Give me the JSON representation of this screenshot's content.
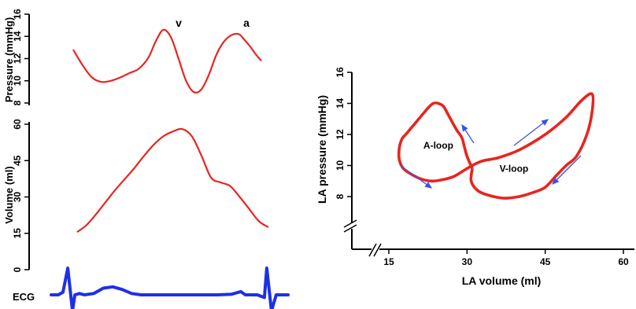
{
  "chart_data": [
    {
      "type": "line",
      "ylabel": "Pressure (mmHg)",
      "yticks": [
        "8",
        "10",
        "12",
        "14",
        "16"
      ],
      "ylim": [
        8,
        16
      ],
      "annotations": [
        {
          "label": "v",
          "t": 0.46
        },
        {
          "label": "a",
          "t": 0.89
        }
      ],
      "series": [
        {
          "t": [
            0.0,
            0.05,
            0.1,
            0.15,
            0.2,
            0.25,
            0.3,
            0.35,
            0.4,
            0.44,
            0.48,
            0.52,
            0.56,
            0.6,
            0.64,
            0.68,
            0.72,
            0.76,
            0.8,
            0.84,
            0.88,
            0.91,
            0.94,
            0.97,
            1.0
          ],
          "values": [
            12.8,
            11.4,
            10.3,
            9.9,
            10.0,
            10.3,
            10.7,
            11.1,
            12.1,
            13.6,
            14.6,
            13.9,
            12.0,
            10.0,
            9.0,
            9.2,
            10.5,
            12.3,
            13.5,
            14.1,
            14.2,
            13.7,
            13.1,
            12.4,
            11.8
          ],
          "color": "#e8251f"
        }
      ]
    },
    {
      "type": "line",
      "ylabel": "Volume (ml)",
      "yticks": [
        "0",
        "15",
        "30",
        "45",
        "60"
      ],
      "ylim": [
        0,
        60
      ],
      "series": [
        {
          "t": [
            0.0,
            0.05,
            0.1,
            0.15,
            0.2,
            0.25,
            0.3,
            0.35,
            0.4,
            0.45,
            0.5,
            0.55,
            0.6,
            0.65,
            0.7,
            0.75,
            0.8,
            0.85,
            0.9,
            0.95,
            1.0
          ],
          "values": [
            15.5,
            18.5,
            23.0,
            28.0,
            33.0,
            37.5,
            42.0,
            47.0,
            51.5,
            55.0,
            57.0,
            58.0,
            55.0,
            47.0,
            38.0,
            36.0,
            34.5,
            30.0,
            25.0,
            20.0,
            17.5
          ],
          "color": "#e8251f"
        }
      ]
    },
    {
      "type": "line",
      "ylabel": "ECG",
      "series": [
        {
          "t": [
            0.0,
            0.03,
            0.05,
            0.07,
            0.09,
            0.1,
            0.12,
            0.14,
            0.18,
            0.22,
            0.26,
            0.3,
            0.34,
            0.38,
            0.42,
            0.5,
            0.6,
            0.7,
            0.76,
            0.8,
            0.82,
            0.84,
            0.87,
            0.9,
            0.91,
            0.93,
            0.95,
            0.97,
            1.0
          ],
          "values": [
            0.0,
            0.0,
            0.1,
            1.0,
            -0.6,
            0.0,
            0.05,
            0.0,
            0.05,
            0.25,
            0.3,
            0.2,
            0.05,
            0.0,
            0.0,
            0.0,
            0.0,
            0.0,
            0.02,
            0.12,
            0.0,
            0.0,
            0.0,
            -0.1,
            1.0,
            -0.6,
            0.0,
            0.0,
            0.0
          ],
          "color": "#1e2fe8"
        }
      ]
    },
    {
      "type": "line",
      "xlabel": "LA volume (ml)",
      "ylabel": "LA pressure (mmHg)",
      "xticks": [
        "15",
        "30",
        "45",
        "60"
      ],
      "yticks": [
        "8",
        "10",
        "12",
        "14",
        "16"
      ],
      "xlim": [
        15,
        60
      ],
      "ylim": [
        8,
        16
      ],
      "annotations": [
        {
          "label": "A-loop",
          "x": 24.5,
          "y": 11.3
        },
        {
          "label": "V-loop",
          "x": 39,
          "y": 9.8
        }
      ],
      "series": [
        {
          "x": [
            31,
            30,
            29.5,
            29,
            28,
            26.5,
            25.5,
            24.5,
            23.5,
            22.5,
            21.5,
            20.5,
            19.5,
            18.5,
            17.5,
            17.0,
            17.0,
            17.8,
            19.5,
            21.5,
            23.5,
            25.5,
            27.5,
            29.5,
            31.0,
            33.0,
            36.0,
            40.0,
            45.0,
            49.0,
            52.0,
            54.0,
            54.0,
            53.0,
            51.0,
            49.0,
            47.0,
            45.0,
            43.0,
            40.0,
            37.0,
            34.0,
            32.0,
            30.8,
            31.0
          ],
          "y": [
            9.8,
            10.6,
            11.2,
            11.8,
            12.3,
            13.2,
            13.8,
            14.0,
            14.0,
            13.7,
            13.3,
            12.9,
            12.5,
            12.1,
            11.7,
            11.1,
            10.4,
            9.8,
            9.4,
            9.1,
            9.0,
            9.1,
            9.3,
            9.7,
            10.0,
            10.3,
            10.5,
            11.0,
            12.0,
            13.1,
            14.2,
            14.6,
            13.5,
            12.0,
            10.6,
            10.0,
            9.3,
            8.6,
            8.3,
            8.0,
            7.9,
            8.1,
            8.4,
            9.0,
            9.8
          ],
          "color": "#e8251f"
        }
      ]
    }
  ]
}
